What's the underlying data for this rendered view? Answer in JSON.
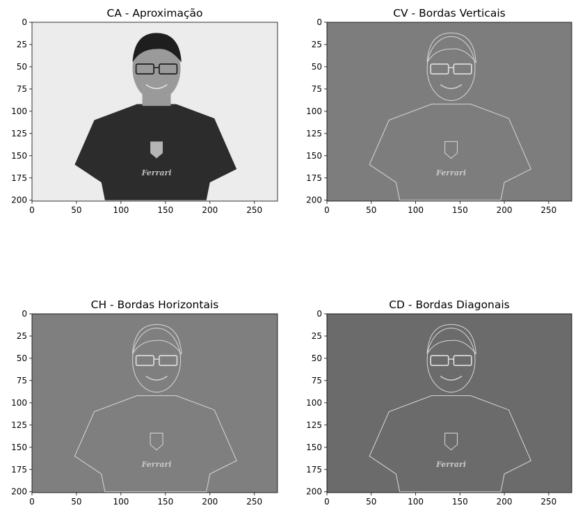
{
  "chart_data": [
    {
      "type": "image",
      "title": "CA - Aproximação",
      "variant": "approx",
      "bg": "#ececec",
      "xticks": [
        0,
        50,
        100,
        150,
        200,
        250
      ],
      "yticks": [
        0,
        25,
        50,
        75,
        100,
        125,
        150,
        175,
        200
      ],
      "xlim": [
        0,
        276
      ],
      "ylim": [
        201,
        0
      ],
      "logo_text": "Ferrari"
    },
    {
      "type": "image",
      "title": "CV - Bordas Verticais",
      "variant": "edge",
      "bg": "#7d7d7d",
      "xticks": [
        0,
        50,
        100,
        150,
        200,
        250
      ],
      "yticks": [
        0,
        25,
        50,
        75,
        100,
        125,
        150,
        175,
        200
      ],
      "xlim": [
        0,
        276
      ],
      "ylim": [
        201,
        0
      ],
      "logo_text": "Ferrari"
    },
    {
      "type": "image",
      "title": "CH - Bordas Horizontais",
      "variant": "edge",
      "bg": "#7f7f7f",
      "xticks": [
        0,
        50,
        100,
        150,
        200,
        250
      ],
      "yticks": [
        0,
        25,
        50,
        75,
        100,
        125,
        150,
        175,
        200
      ],
      "xlim": [
        0,
        276
      ],
      "ylim": [
        201,
        0
      ],
      "logo_text": "Ferrari"
    },
    {
      "type": "image",
      "title": "CD - Bordas Diagonais",
      "variant": "edge",
      "bg": "#6b6b6b",
      "xticks": [
        0,
        50,
        100,
        150,
        200,
        250
      ],
      "yticks": [
        0,
        25,
        50,
        75,
        100,
        125,
        150,
        175,
        200
      ],
      "xlim": [
        0,
        276
      ],
      "ylim": [
        201,
        0
      ],
      "logo_text": "Ferrari"
    }
  ]
}
